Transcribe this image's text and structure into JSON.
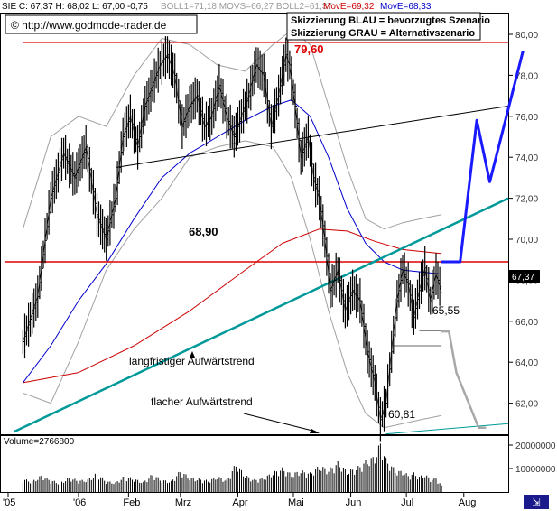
{
  "header": {
    "quote": "SIE C: 67,37 H: 68,02 L: 67,00 -0,75",
    "indicators": "BOLL1=71,18 MOVS=66,27 BOLL2=61,37",
    "moving_average_1": "MovE=69,32",
    "moving_average_2": "MovE=68,33",
    "copyright": "© http://www.godmode-trader.de",
    "legend_blue": "Skizzierung BLAU = bevorzugtes Szenario",
    "legend_grey": "Skizzierung GRAU = Alternativszenario",
    "last_price_tag": "67,37"
  },
  "annotations": {
    "resistance_high": "79,60",
    "horizontal_level": "68,90",
    "level_65": "65,55",
    "level_60": "60,81",
    "trend_long": "langfristiger Aufwärtstrend",
    "trend_flat": "flacher Aufwärtstrend"
  },
  "volume_panel": {
    "label": "Volume=2766800",
    "ticks": [
      {
        "value": 20000000,
        "label": "20000000"
      },
      {
        "value": 10000000,
        "label": "10000000"
      }
    ]
  },
  "colors": {
    "price": "#000000",
    "bollinger": "#a0a0a0",
    "ma_short": "#0000cc",
    "ma_long": "#cc0000",
    "resistance": "#dd0000",
    "trend_long": "#009999",
    "scenario_blue": "#1a1aff",
    "scenario_grey": "#a8a8a8",
    "volume": "#000000"
  },
  "chart_data": {
    "type": "line",
    "title": "",
    "xlabel": "",
    "ylabel": "",
    "ylim": [
      60.5,
      81.0
    ],
    "grid": false,
    "x_ticks": [
      {
        "day": -8,
        "label": "'05"
      },
      {
        "day": 30,
        "label": "'06"
      },
      {
        "day": 57,
        "label": "Feb"
      },
      {
        "day": 85,
        "label": "Mrz"
      },
      {
        "day": 116,
        "label": "Apr"
      },
      {
        "day": 146,
        "label": "Mai"
      },
      {
        "day": 177,
        "label": "Jun"
      },
      {
        "day": 207,
        "label": "Jul"
      },
      {
        "day": 238,
        "label": "Aug"
      }
    ],
    "y_ticks": [
      {
        "value": 62,
        "label": "62,00"
      },
      {
        "value": 64,
        "label": "64,00"
      },
      {
        "value": 66,
        "label": "66,00"
      },
      {
        "value": 68,
        "label": "68,00"
      },
      {
        "value": 70,
        "label": "70,00"
      },
      {
        "value": 72,
        "label": "72,00"
      },
      {
        "value": 74,
        "label": "74,00"
      },
      {
        "value": 76,
        "label": "76,00"
      },
      {
        "value": 78,
        "label": "78,00"
      },
      {
        "value": 80,
        "label": "80,00"
      }
    ],
    "price_series": {
      "name": "SIE",
      "points": [
        {
          "day": 0,
          "value": 65.0
        },
        {
          "day": 8,
          "value": 67.2
        },
        {
          "day": 15,
          "value": 72.0
        },
        {
          "day": 22,
          "value": 74.2
        },
        {
          "day": 28,
          "value": 73.0
        },
        {
          "day": 34,
          "value": 74.5
        },
        {
          "day": 40,
          "value": 71.2
        },
        {
          "day": 45,
          "value": 70.0
        },
        {
          "day": 50,
          "value": 72.0
        },
        {
          "day": 54,
          "value": 75.0
        },
        {
          "day": 58,
          "value": 76.0
        },
        {
          "day": 62,
          "value": 74.5
        },
        {
          "day": 66,
          "value": 76.5
        },
        {
          "day": 70,
          "value": 77.5
        },
        {
          "day": 74,
          "value": 78.5
        },
        {
          "day": 78,
          "value": 79.0
        },
        {
          "day": 82,
          "value": 78.0
        },
        {
          "day": 86,
          "value": 75.5
        },
        {
          "day": 90,
          "value": 76.5
        },
        {
          "day": 94,
          "value": 77.0
        },
        {
          "day": 98,
          "value": 75.5
        },
        {
          "day": 102,
          "value": 76.0
        },
        {
          "day": 106,
          "value": 77.5
        },
        {
          "day": 110,
          "value": 76.0
        },
        {
          "day": 114,
          "value": 75.0
        },
        {
          "day": 118,
          "value": 76.0
        },
        {
          "day": 122,
          "value": 77.0
        },
        {
          "day": 126,
          "value": 78.5
        },
        {
          "day": 130,
          "value": 78.0
        },
        {
          "day": 134,
          "value": 75.5
        },
        {
          "day": 138,
          "value": 77.0
        },
        {
          "day": 142,
          "value": 79.0
        },
        {
          "day": 144,
          "value": 78.5
        },
        {
          "day": 147,
          "value": 76.5
        },
        {
          "day": 150,
          "value": 74.0
        },
        {
          "day": 154,
          "value": 75.0
        },
        {
          "day": 157,
          "value": 73.0
        },
        {
          "day": 160,
          "value": 72.0
        },
        {
          "day": 163,
          "value": 70.0
        },
        {
          "day": 166,
          "value": 67.5
        },
        {
          "day": 170,
          "value": 68.5
        },
        {
          "day": 174,
          "value": 66.5
        },
        {
          "day": 178,
          "value": 67.5
        },
        {
          "day": 182,
          "value": 67.0
        },
        {
          "day": 186,
          "value": 64.5
        },
        {
          "day": 190,
          "value": 63.0
        },
        {
          "day": 193,
          "value": 61.2
        },
        {
          "day": 196,
          "value": 62.0
        },
        {
          "day": 199,
          "value": 64.5
        },
        {
          "day": 202,
          "value": 67.0
        },
        {
          "day": 205,
          "value": 68.5
        },
        {
          "day": 208,
          "value": 67.8
        },
        {
          "day": 211,
          "value": 66.2
        },
        {
          "day": 214,
          "value": 67.5
        },
        {
          "day": 217,
          "value": 68.6
        },
        {
          "day": 220,
          "value": 67.0
        },
        {
          "day": 223,
          "value": 68.3
        },
        {
          "day": 226,
          "value": 67.4
        }
      ]
    },
    "bollinger_upper": {
      "name": "BOLL1",
      "points": [
        {
          "day": 0,
          "value": 70.5
        },
        {
          "day": 15,
          "value": 75.0
        },
        {
          "day": 30,
          "value": 76.0
        },
        {
          "day": 45,
          "value": 75.5
        },
        {
          "day": 60,
          "value": 78.0
        },
        {
          "day": 75,
          "value": 79.8
        },
        {
          "day": 90,
          "value": 79.5
        },
        {
          "day": 105,
          "value": 78.5
        },
        {
          "day": 120,
          "value": 78.2
        },
        {
          "day": 135,
          "value": 79.5
        },
        {
          "day": 145,
          "value": 80.2
        },
        {
          "day": 155,
          "value": 79.5
        },
        {
          "day": 165,
          "value": 76.5
        },
        {
          "day": 175,
          "value": 73.5
        },
        {
          "day": 185,
          "value": 71.0
        },
        {
          "day": 195,
          "value": 70.5
        },
        {
          "day": 205,
          "value": 70.8
        },
        {
          "day": 215,
          "value": 71.0
        },
        {
          "day": 226,
          "value": 71.2
        }
      ]
    },
    "bollinger_lower": {
      "name": "BOLL2",
      "points": [
        {
          "day": 0,
          "value": 62.5
        },
        {
          "day": 15,
          "value": 62.0
        },
        {
          "day": 30,
          "value": 65.0
        },
        {
          "day": 45,
          "value": 68.5
        },
        {
          "day": 60,
          "value": 70.5
        },
        {
          "day": 75,
          "value": 72.0
        },
        {
          "day": 90,
          "value": 74.0
        },
        {
          "day": 105,
          "value": 74.5
        },
        {
          "day": 120,
          "value": 74.8
        },
        {
          "day": 135,
          "value": 74.5
        },
        {
          "day": 145,
          "value": 73.0
        },
        {
          "day": 155,
          "value": 70.0
        },
        {
          "day": 165,
          "value": 66.5
        },
        {
          "day": 175,
          "value": 63.5
        },
        {
          "day": 185,
          "value": 61.5
        },
        {
          "day": 195,
          "value": 60.8
        },
        {
          "day": 205,
          "value": 61.0
        },
        {
          "day": 215,
          "value": 61.2
        },
        {
          "day": 226,
          "value": 61.4
        }
      ]
    },
    "ma_short": {
      "name": "MovE=68,33",
      "points": [
        {
          "day": 0,
          "value": 63.0
        },
        {
          "day": 15,
          "value": 64.8
        },
        {
          "day": 30,
          "value": 67.0
        },
        {
          "day": 45,
          "value": 68.8
        },
        {
          "day": 60,
          "value": 71.0
        },
        {
          "day": 75,
          "value": 73.0
        },
        {
          "day": 90,
          "value": 74.2
        },
        {
          "day": 105,
          "value": 75.0
        },
        {
          "day": 120,
          "value": 75.8
        },
        {
          "day": 135,
          "value": 76.5
        },
        {
          "day": 145,
          "value": 76.8
        },
        {
          "day": 155,
          "value": 76.0
        },
        {
          "day": 165,
          "value": 74.0
        },
        {
          "day": 175,
          "value": 71.5
        },
        {
          "day": 185,
          "value": 69.8
        },
        {
          "day": 195,
          "value": 68.9
        },
        {
          "day": 205,
          "value": 68.5
        },
        {
          "day": 215,
          "value": 68.4
        },
        {
          "day": 226,
          "value": 68.3
        }
      ]
    },
    "ma_long": {
      "name": "MovE=69,32",
      "points": [
        {
          "day": 0,
          "value": 63.0
        },
        {
          "day": 30,
          "value": 63.5
        },
        {
          "day": 60,
          "value": 64.8
        },
        {
          "day": 90,
          "value": 66.5
        },
        {
          "day": 120,
          "value": 68.5
        },
        {
          "day": 140,
          "value": 69.8
        },
        {
          "day": 160,
          "value": 70.5
        },
        {
          "day": 175,
          "value": 70.4
        },
        {
          "day": 190,
          "value": 69.9
        },
        {
          "day": 205,
          "value": 69.5
        },
        {
          "day": 226,
          "value": 69.3
        }
      ]
    },
    "lines": {
      "resistance_high": {
        "from": {
          "day": 0,
          "value": 79.6
        },
        "to": {
          "day": 270,
          "value": 79.6
        }
      },
      "horizontal_level": {
        "from": {
          "day": -10,
          "value": 68.9
        },
        "to": {
          "day": 270,
          "value": 68.9
        }
      },
      "trend_long": {
        "from": {
          "day": -5,
          "value": 60.6
        },
        "to": {
          "day": 270,
          "value": 72.0
        }
      },
      "trend_upper": {
        "from": {
          "day": 50,
          "value": 73.5
        },
        "to": {
          "day": 270,
          "value": 76.5
        }
      },
      "trend_flat": {
        "from": {
          "day": 196,
          "value": 60.5
        },
        "to": {
          "day": 270,
          "value": 61.0
        }
      },
      "level_65_support": {
        "from": {
          "day": 214,
          "value": 65.55
        },
        "to": {
          "day": 226,
          "value": 65.55
        }
      },
      "level_64_support": {
        "from": {
          "day": 200,
          "value": 64.8
        },
        "to": {
          "day": 226,
          "value": 64.8
        }
      }
    },
    "scenario_blue": [
      {
        "day": 226,
        "value": 68.9
      },
      {
        "day": 236,
        "value": 68.9
      },
      {
        "day": 245,
        "value": 75.8
      },
      {
        "day": 252,
        "value": 72.8
      },
      {
        "day": 270,
        "value": 79.2
      }
    ],
    "scenario_grey": [
      {
        "day": 226,
        "value": 65.5
      },
      {
        "day": 230,
        "value": 65.5
      },
      {
        "day": 234,
        "value": 63.5
      },
      {
        "day": 246,
        "value": 60.8
      },
      {
        "day": 250,
        "value": 60.8
      }
    ],
    "volume": [
      {
        "day": 0,
        "value": 5500000
      },
      {
        "day": 5,
        "value": 4500000
      },
      {
        "day": 10,
        "value": 7000000
      },
      {
        "day": 15,
        "value": 5000000
      },
      {
        "day": 20,
        "value": 3800000
      },
      {
        "day": 25,
        "value": 6200000
      },
      {
        "day": 30,
        "value": 4800000
      },
      {
        "day": 35,
        "value": 5200000
      },
      {
        "day": 40,
        "value": 8000000
      },
      {
        "day": 45,
        "value": 4500000
      },
      {
        "day": 50,
        "value": 4000000
      },
      {
        "day": 55,
        "value": 6800000
      },
      {
        "day": 60,
        "value": 5500000
      },
      {
        "day": 65,
        "value": 4200000
      },
      {
        "day": 70,
        "value": 7500000
      },
      {
        "day": 75,
        "value": 5000000
      },
      {
        "day": 80,
        "value": 4500000
      },
      {
        "day": 85,
        "value": 9000000
      },
      {
        "day": 90,
        "value": 6000000
      },
      {
        "day": 95,
        "value": 5500000
      },
      {
        "day": 100,
        "value": 4800000
      },
      {
        "day": 105,
        "value": 6500000
      },
      {
        "day": 110,
        "value": 5000000
      },
      {
        "day": 115,
        "value": 12000000
      },
      {
        "day": 120,
        "value": 7000000
      },
      {
        "day": 125,
        "value": 5200000
      },
      {
        "day": 130,
        "value": 6000000
      },
      {
        "day": 135,
        "value": 8200000
      },
      {
        "day": 140,
        "value": 10000000
      },
      {
        "day": 145,
        "value": 7500000
      },
      {
        "day": 150,
        "value": 9000000
      },
      {
        "day": 155,
        "value": 8000000
      },
      {
        "day": 160,
        "value": 11000000
      },
      {
        "day": 165,
        "value": 9500000
      },
      {
        "day": 170,
        "value": 12500000
      },
      {
        "day": 175,
        "value": 8800000
      },
      {
        "day": 180,
        "value": 10000000
      },
      {
        "day": 185,
        "value": 13000000
      },
      {
        "day": 190,
        "value": 15000000
      },
      {
        "day": 193,
        "value": 21000000
      },
      {
        "day": 196,
        "value": 14000000
      },
      {
        "day": 199,
        "value": 11000000
      },
      {
        "day": 202,
        "value": 8500000
      },
      {
        "day": 205,
        "value": 9000000
      },
      {
        "day": 208,
        "value": 7000000
      },
      {
        "day": 211,
        "value": 8000000
      },
      {
        "day": 214,
        "value": 6500000
      },
      {
        "day": 217,
        "value": 7500000
      },
      {
        "day": 220,
        "value": 5500000
      },
      {
        "day": 223,
        "value": 6000000
      },
      {
        "day": 226,
        "value": 2766800
      }
    ]
  }
}
